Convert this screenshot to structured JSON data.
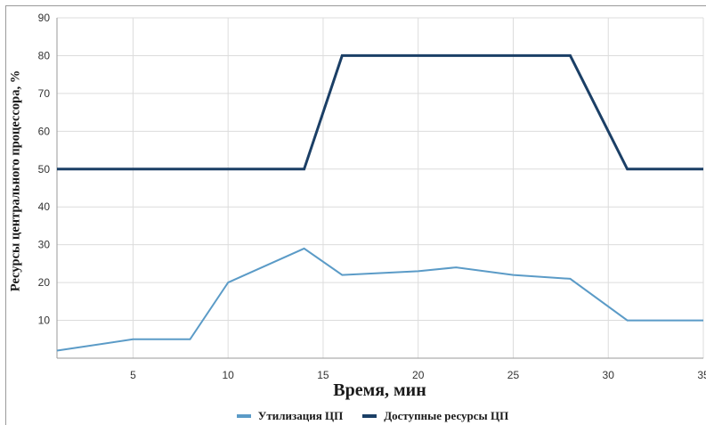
{
  "chart_data": {
    "type": "line",
    "xlabel": "Время, мин",
    "ylabel": "Ресурсы центрального процессора, %",
    "xlim": [
      1,
      35
    ],
    "ylim": [
      0,
      90
    ],
    "x_ticks": [
      5,
      10,
      15,
      20,
      25,
      30,
      35
    ],
    "y_ticks": [
      10,
      20,
      30,
      40,
      50,
      60,
      70,
      80,
      90
    ],
    "grid": true,
    "legend_position": "bottom",
    "series": [
      {
        "name": "Утилизация ЦП",
        "color": "#5b9bc7",
        "x": [
          1,
          5,
          8,
          10,
          14,
          16,
          20,
          22,
          25,
          28,
          31,
          35
        ],
        "y": [
          2,
          5,
          5,
          20,
          29,
          22,
          23,
          24,
          22,
          21,
          10,
          10
        ]
      },
      {
        "name": "Доступные ресурсы ЦП",
        "color": "#1b3f66",
        "x": [
          1,
          14,
          16,
          28,
          31,
          35
        ],
        "y": [
          50,
          50,
          80,
          80,
          50,
          50
        ]
      }
    ]
  }
}
